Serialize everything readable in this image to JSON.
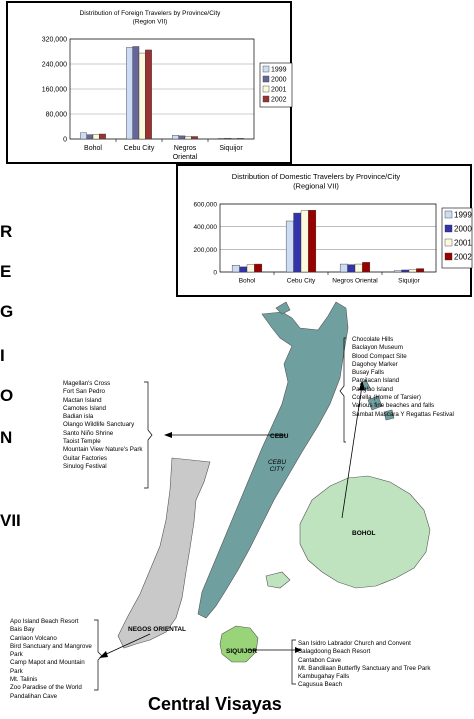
{
  "chart_data": [
    {
      "type": "bar",
      "title": "Distribution of Foreign Travelers by Province/City",
      "subtitle": "(Region VII)",
      "categories": [
        "Bohol",
        "Cebu City",
        "Negros Oriental",
        "Siquijor"
      ],
      "series": [
        {
          "name": "1999",
          "values": [
            20000,
            293000,
            12000,
            2500
          ],
          "color": "#ccdcf4"
        },
        {
          "name": "2000",
          "values": [
            14000,
            296000,
            10000,
            2500
          ],
          "color": "#666699"
        },
        {
          "name": "2001",
          "values": [
            15000,
            275000,
            8000,
            2000
          ],
          "color": "#fdf9dc"
        },
        {
          "name": "2002",
          "values": [
            16000,
            285000,
            8000,
            2000
          ],
          "color": "#993333"
        }
      ],
      "ylim": [
        0,
        320000
      ],
      "yticks": [
        "0",
        "80,000",
        "160,000",
        "240,000",
        "320,000"
      ],
      "grid": true,
      "legend": "right"
    },
    {
      "type": "bar",
      "title": "Distribution of Domestic Travelers by Province/City",
      "subtitle": "(Regional VII)",
      "categories": [
        "Bohol",
        "Cebu City",
        "Negros Oriental",
        "Siquijor"
      ],
      "series": [
        {
          "name": "1999",
          "values": [
            60000,
            450000,
            70000,
            12000
          ],
          "color": "#ccdcf4"
        },
        {
          "name": "2000",
          "values": [
            45000,
            520000,
            65000,
            18000
          ],
          "color": "#3333aa"
        },
        {
          "name": "2001",
          "values": [
            65000,
            540000,
            70000,
            20000
          ],
          "color": "#fdf9dc"
        },
        {
          "name": "2002",
          "values": [
            70000,
            545000,
            85000,
            30000
          ],
          "color": "#990000"
        }
      ],
      "ylim": [
        0,
        600000
      ],
      "yticks": [
        "0",
        "200,000",
        "400,000",
        "600,000"
      ],
      "grid": true,
      "legend": "right"
    }
  ],
  "region_letters": [
    "R",
    "E",
    "G",
    "I",
    "O",
    "N",
    "VII"
  ],
  "map": {
    "title": "Central Visayas",
    "labels": {
      "cebu": "CEBU",
      "cebu_city": "CEBU CITY",
      "bohol": "BOHOL",
      "negros": "NEGOS ORIENTAL",
      "siquijor": "SIQUIJOR"
    },
    "colors": {
      "cebu": "#6f9f9f",
      "bohol": "#bfe2bf",
      "negros": "#c9c9c9",
      "siquijor": "#99d479"
    }
  },
  "attractions": {
    "bohol": [
      "Chocolate Hills",
      "Baclayon Museum",
      "Blood Compact Site",
      "Dagohoy Marker",
      "Busay Falls",
      "Pamilacan Island",
      "Panglao Island",
      "Corella (Home of Tarsier)",
      "Various fine beaches and falls",
      "Sambat Mascara Y Regattas Festival"
    ],
    "cebu": [
      "Magellan's Cross",
      "Fort San Pedro",
      "Mactan Island",
      "Camotes Island",
      "Badian isla",
      "Olango Wildlife Sanctuary",
      "Santo Niño Shrine",
      "Taoist Temple",
      "Mountain View Nature's Park",
      "Guitar Factories",
      "Sinulog Festival"
    ],
    "negros": [
      "Apo Island Beach Resort",
      "Bais Bay",
      "Canlaon Volcano",
      "Bird Sanctuary and Mangrove Park",
      "Camp Mapot and Mountain Park",
      "Mt. Talinis",
      "Zoo Paradise of the World",
      "Pandalihan Cave"
    ],
    "siquijor": [
      "San Isidro Labrador Church and Convent",
      "Salagdoong Beach Resort",
      "Cantabon Cave",
      "Mt. Bandilaan Butterfly Sanctuary and Tree Park",
      "Kambugahay Falls",
      "Cagusua Beach"
    ]
  }
}
